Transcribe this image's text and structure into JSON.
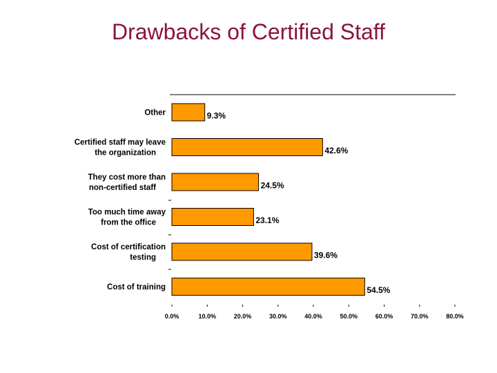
{
  "slide": {
    "title": "Drawbacks of Certified Staff"
  },
  "chart_data": {
    "type": "bar",
    "orientation": "horizontal",
    "title": "Drawbacks of Certified Staff",
    "bar_color": "#FF9900",
    "bar_edge_color": "#000000",
    "categories": [
      [
        "Other"
      ],
      [
        "Certified staff may leave",
        "the organization"
      ],
      [
        "They cost more than",
        "non-certified staff"
      ],
      [
        "Too much time away",
        "from the office"
      ],
      [
        "Cost of certification",
        "testing"
      ],
      [
        "Cost of training"
      ]
    ],
    "values": [
      9.3,
      42.6,
      24.5,
      23.1,
      39.6,
      54.5
    ],
    "value_labels": [
      "9.3%",
      "42.6%",
      "24.5%",
      "23.1%",
      "39.6%",
      "54.5%"
    ],
    "xlim": [
      0,
      80
    ],
    "x_ticks": [
      0,
      10,
      20,
      30,
      40,
      50,
      60,
      70,
      80
    ],
    "x_tick_labels": [
      "0.0%",
      "10.0%",
      "20.0%",
      "30.0%",
      "40.0%",
      "50.0%",
      "60.0%",
      "70.0%",
      "80.0%"
    ],
    "grid": false,
    "legend": "none"
  }
}
